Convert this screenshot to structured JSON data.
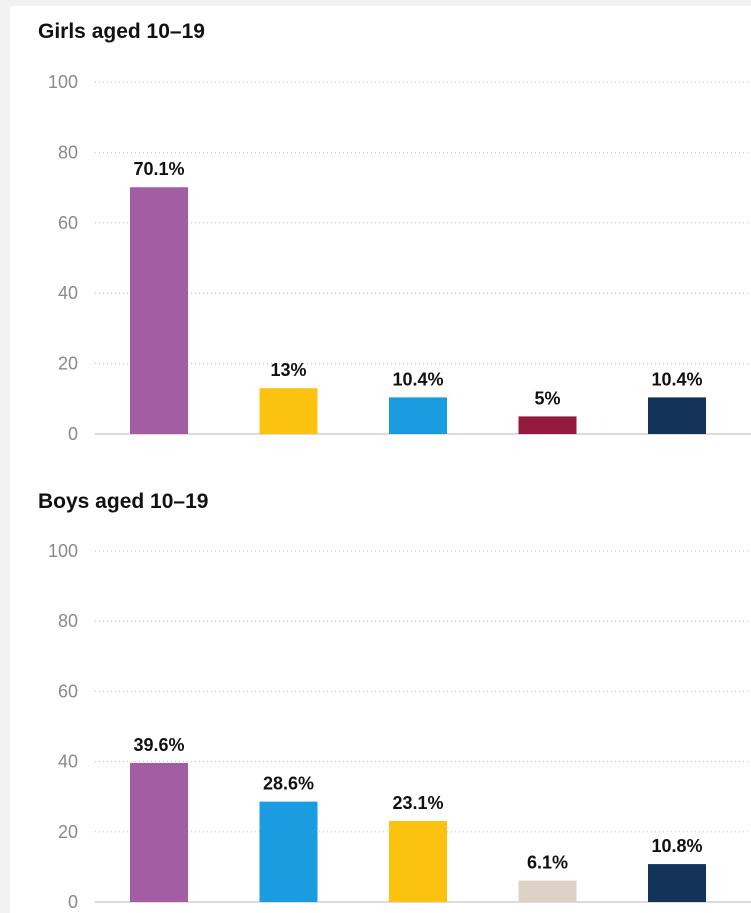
{
  "chart_data": [
    {
      "type": "bar",
      "title": "Girls aged 10–19",
      "categories": [
        "",
        "",
        "",
        "",
        ""
      ],
      "values": [
        70.1,
        13,
        10.4,
        5,
        10.4
      ],
      "labels": [
        "70.1%",
        "13%",
        "10.4%",
        "5%",
        "10.4%"
      ],
      "colors": [
        "#a35ea3",
        "#fbc20f",
        "#1b9be0",
        "#93193f",
        "#13335a"
      ],
      "ylim": [
        0,
        100
      ],
      "yticks": [
        "0",
        "20",
        "40",
        "60",
        "80",
        "100"
      ],
      "xlabel": "",
      "ylabel": "",
      "grid": true,
      "legend": "none"
    },
    {
      "type": "bar",
      "title": "Boys aged 10–19",
      "categories": [
        "",
        "",
        "",
        "",
        ""
      ],
      "values": [
        39.6,
        28.6,
        23.1,
        6.1,
        10.8
      ],
      "labels": [
        "39.6%",
        "28.6%",
        "23.1%",
        "6.1%",
        "10.8%"
      ],
      "colors": [
        "#a35ea3",
        "#1b9be0",
        "#fbc20f",
        "#dcd2c5",
        "#13335a"
      ],
      "ylim": [
        0,
        100
      ],
      "yticks": [
        "0",
        "20",
        "40",
        "60",
        "80",
        "100"
      ],
      "xlabel": "",
      "ylabel": "",
      "grid": true,
      "legend": "none"
    }
  ]
}
